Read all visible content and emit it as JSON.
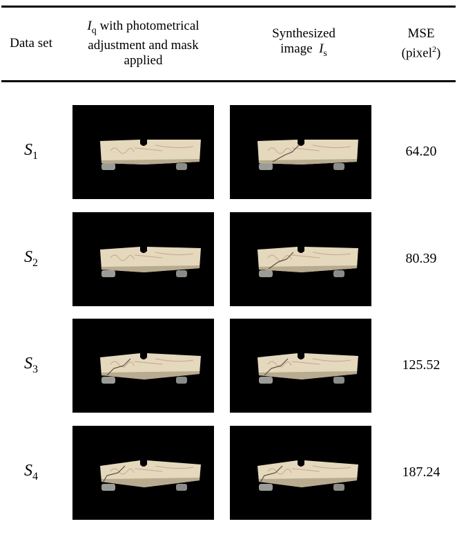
{
  "header": {
    "col1": "Data set",
    "col2": {
      "symbol": "I",
      "sub": "q",
      "text": "with photometrical adjustment and mask applied"
    },
    "col3": {
      "text": "Synthesized image",
      "symbol": "I",
      "sub": "s"
    },
    "col4": {
      "text": "MSE (pixel",
      "sup": "2",
      "close": ")"
    }
  },
  "rows": [
    {
      "symbol": "S",
      "sub": "1",
      "mse": "64.20"
    },
    {
      "symbol": "S",
      "sub": "2",
      "mse": "80.39"
    },
    {
      "symbol": "S",
      "sub": "3",
      "mse": "125.52"
    },
    {
      "symbol": "S",
      "sub": "4",
      "mse": "187.24"
    }
  ]
}
